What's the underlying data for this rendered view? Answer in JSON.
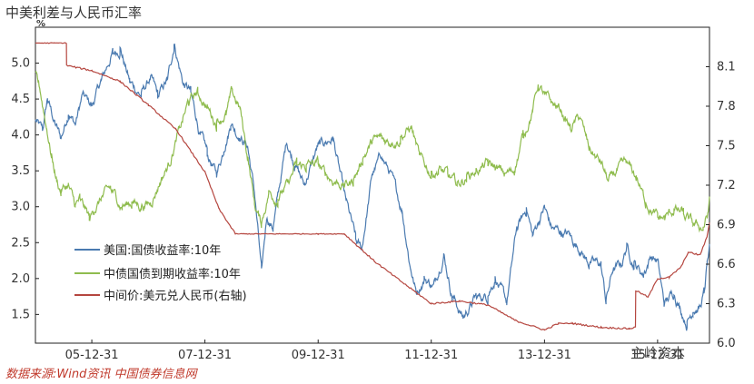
{
  "title": "中美利差与人民币汇率",
  "source": "数据来源:Wind资讯 中国债券信息网",
  "watermark": "主岭资本",
  "chart_data": {
    "type": "line",
    "title": "中美利差与人民币汇率",
    "left_axis": {
      "unit": "%",
      "ylim": [
        1.1,
        5.5
      ],
      "ticks": [
        1.5,
        2.0,
        2.5,
        3.0,
        3.5,
        4.0,
        4.5,
        5.0
      ]
    },
    "right_axis": {
      "ylim": [
        6.0,
        8.4
      ],
      "ticks": [
        6.0,
        6.3,
        6.6,
        6.9,
        7.2,
        7.5,
        7.8,
        8.1
      ]
    },
    "x_range": [
      "2005-01-01",
      "2016-11-30"
    ],
    "x_ticks": [
      "05-12-31",
      "07-12-31",
      "09-12-31",
      "11-12-31",
      "13-12-31",
      "15-12-31"
    ],
    "grid": false,
    "legend_position": "bottom-left",
    "series": [
      {
        "name": "美国:国债收益率:10年",
        "color": "#4a7ab0",
        "axis": "left",
        "points": [
          [
            "2005-01-01",
            4.2
          ],
          [
            "2005-02-15",
            4.05
          ],
          [
            "2005-03-20",
            4.5
          ],
          [
            "2005-05-01",
            4.2
          ],
          [
            "2005-06-15",
            3.95
          ],
          [
            "2005-08-01",
            4.3
          ],
          [
            "2005-09-15",
            4.15
          ],
          [
            "2005-11-01",
            4.55
          ],
          [
            "2006-01-01",
            4.4
          ],
          [
            "2006-03-01",
            4.75
          ],
          [
            "2006-05-15",
            5.15
          ],
          [
            "2006-07-01",
            5.2
          ],
          [
            "2006-09-01",
            4.75
          ],
          [
            "2006-11-15",
            4.55
          ],
          [
            "2007-01-15",
            4.8
          ],
          [
            "2007-03-01",
            4.55
          ],
          [
            "2007-05-01",
            4.75
          ],
          [
            "2007-06-15",
            5.25
          ],
          [
            "2007-08-15",
            4.7
          ],
          [
            "2007-10-01",
            4.6
          ],
          [
            "2007-12-01",
            4.0
          ],
          [
            "2008-01-15",
            3.75
          ],
          [
            "2008-03-15",
            3.45
          ],
          [
            "2008-05-01",
            3.8
          ],
          [
            "2008-06-15",
            4.15
          ],
          [
            "2008-08-01",
            4.0
          ],
          [
            "2008-10-01",
            3.85
          ],
          [
            "2008-11-15",
            3.2
          ],
          [
            "2008-12-30",
            2.1
          ],
          [
            "2009-02-01",
            2.85
          ],
          [
            "2009-03-15",
            2.7
          ],
          [
            "2009-06-10",
            3.9
          ],
          [
            "2009-08-01",
            3.6
          ],
          [
            "2009-10-01",
            3.3
          ],
          [
            "2009-12-31",
            3.85
          ],
          [
            "2010-04-05",
            3.95
          ],
          [
            "2010-06-15",
            3.2
          ],
          [
            "2010-08-30",
            2.55
          ],
          [
            "2010-10-08",
            2.4
          ],
          [
            "2010-12-15",
            3.45
          ],
          [
            "2011-02-10",
            3.7
          ],
          [
            "2011-04-15",
            3.45
          ],
          [
            "2011-06-25",
            2.95
          ],
          [
            "2011-08-20",
            2.15
          ],
          [
            "2011-09-25",
            1.8
          ],
          [
            "2011-11-15",
            2.0
          ],
          [
            "2012-01-15",
            1.9
          ],
          [
            "2012-03-20",
            2.35
          ],
          [
            "2012-05-15",
            1.75
          ],
          [
            "2012-07-24",
            1.45
          ],
          [
            "2012-10-15",
            1.75
          ],
          [
            "2012-12-31",
            1.75
          ],
          [
            "2013-02-15",
            2.0
          ],
          [
            "2013-05-01",
            1.65
          ],
          [
            "2013-07-05",
            2.7
          ],
          [
            "2013-09-05",
            2.95
          ],
          [
            "2013-10-15",
            2.6
          ],
          [
            "2013-12-31",
            3.0
          ],
          [
            "2014-02-15",
            2.7
          ],
          [
            "2014-04-15",
            2.65
          ],
          [
            "2014-06-15",
            2.6
          ],
          [
            "2014-08-15",
            2.4
          ],
          [
            "2014-10-15",
            2.2
          ],
          [
            "2014-12-31",
            2.2
          ],
          [
            "2015-02-01",
            1.68
          ],
          [
            "2015-03-15",
            2.1
          ],
          [
            "2015-05-15",
            2.2
          ],
          [
            "2015-06-15",
            2.45
          ],
          [
            "2015-08-01",
            2.2
          ],
          [
            "2015-10-01",
            2.05
          ],
          [
            "2015-11-15",
            2.3
          ],
          [
            "2015-12-31",
            2.25
          ],
          [
            "2016-02-11",
            1.65
          ],
          [
            "2016-04-15",
            1.8
          ],
          [
            "2016-07-08",
            1.37
          ],
          [
            "2016-08-15",
            1.55
          ],
          [
            "2016-09-30",
            1.6
          ],
          [
            "2016-10-25",
            1.8
          ],
          [
            "2016-11-15",
            2.2
          ],
          [
            "2016-11-30",
            2.4
          ]
        ]
      },
      {
        "name": "中债国债到期收益率:10年",
        "color": "#8fbc4e",
        "axis": "left",
        "points": [
          [
            "2005-01-01",
            4.85
          ],
          [
            "2005-02-01",
            4.6
          ],
          [
            "2005-03-15",
            4.1
          ],
          [
            "2005-04-15",
            3.7
          ],
          [
            "2005-05-15",
            3.4
          ],
          [
            "2005-06-15",
            3.2
          ],
          [
            "2005-08-01",
            3.3
          ],
          [
            "2005-09-15",
            3.0
          ],
          [
            "2005-10-15",
            3.1
          ],
          [
            "2005-12-15",
            2.85
          ],
          [
            "2006-01-15",
            2.95
          ],
          [
            "2006-03-01",
            3.1
          ],
          [
            "2006-05-01",
            3.25
          ],
          [
            "2006-07-15",
            3.0
          ],
          [
            "2006-09-15",
            3.05
          ],
          [
            "2006-11-15",
            3.0
          ],
          [
            "2007-01-15",
            3.05
          ],
          [
            "2007-03-15",
            3.35
          ],
          [
            "2007-05-15",
            3.6
          ],
          [
            "2007-07-15",
            4.05
          ],
          [
            "2007-09-15",
            4.45
          ],
          [
            "2007-11-15",
            4.6
          ],
          [
            "2008-01-15",
            4.4
          ],
          [
            "2008-03-15",
            4.15
          ],
          [
            "2008-05-15",
            4.3
          ],
          [
            "2008-06-25",
            4.6
          ],
          [
            "2008-08-15",
            4.35
          ],
          [
            "2008-10-01",
            3.7
          ],
          [
            "2008-11-15",
            3.05
          ],
          [
            "2008-12-30",
            2.75
          ],
          [
            "2009-02-15",
            3.2
          ],
          [
            "2009-04-15",
            3.1
          ],
          [
            "2009-06-15",
            3.3
          ],
          [
            "2009-08-15",
            3.6
          ],
          [
            "2009-10-15",
            3.55
          ],
          [
            "2009-12-31",
            3.6
          ],
          [
            "2010-02-15",
            3.45
          ],
          [
            "2010-04-15",
            3.35
          ],
          [
            "2010-06-15",
            3.3
          ],
          [
            "2010-08-15",
            3.35
          ],
          [
            "2010-10-15",
            3.65
          ],
          [
            "2010-12-15",
            3.9
          ],
          [
            "2011-02-15",
            3.95
          ],
          [
            "2011-04-15",
            3.9
          ],
          [
            "2011-06-15",
            3.95
          ],
          [
            "2011-08-25",
            4.1
          ],
          [
            "2011-10-15",
            3.7
          ],
          [
            "2011-12-31",
            3.45
          ],
          [
            "2012-02-15",
            3.5
          ],
          [
            "2012-04-15",
            3.45
          ],
          [
            "2012-06-15",
            3.3
          ],
          [
            "2012-08-15",
            3.4
          ],
          [
            "2012-10-15",
            3.5
          ],
          [
            "2012-12-31",
            3.6
          ],
          [
            "2013-02-15",
            3.55
          ],
          [
            "2013-04-15",
            3.45
          ],
          [
            "2013-06-20",
            3.5
          ],
          [
            "2013-08-15",
            4.0
          ],
          [
            "2013-10-15",
            4.35
          ],
          [
            "2013-11-20",
            4.7
          ],
          [
            "2013-12-31",
            4.55
          ],
          [
            "2014-02-15",
            4.45
          ],
          [
            "2014-04-15",
            4.35
          ],
          [
            "2014-06-15",
            4.1
          ],
          [
            "2014-08-15",
            4.25
          ],
          [
            "2014-10-15",
            3.8
          ],
          [
            "2014-12-31",
            3.6
          ],
          [
            "2015-02-15",
            3.35
          ],
          [
            "2015-04-15",
            3.5
          ],
          [
            "2015-06-15",
            3.6
          ],
          [
            "2015-08-15",
            3.4
          ],
          [
            "2015-10-15",
            3.05
          ],
          [
            "2015-12-31",
            2.85
          ],
          [
            "2016-02-15",
            2.85
          ],
          [
            "2016-04-15",
            2.95
          ],
          [
            "2016-06-15",
            2.9
          ],
          [
            "2016-08-15",
            2.75
          ],
          [
            "2016-10-20",
            2.7
          ],
          [
            "2016-11-15",
            2.85
          ],
          [
            "2016-11-30",
            3.1
          ]
        ]
      },
      {
        "name": "中间价:美元兑人民币(右轴)",
        "color": "#b5463f",
        "axis": "right",
        "points": [
          [
            "2005-01-01",
            8.28
          ],
          [
            "2005-07-20",
            8.28
          ],
          [
            "2005-07-21",
            8.11
          ],
          [
            "2005-12-31",
            8.07
          ],
          [
            "2006-06-30",
            7.99
          ],
          [
            "2006-12-31",
            7.81
          ],
          [
            "2007-06-30",
            7.62
          ],
          [
            "2007-12-31",
            7.3
          ],
          [
            "2008-03-31",
            7.02
          ],
          [
            "2008-07-15",
            6.83
          ],
          [
            "2008-12-31",
            6.83
          ],
          [
            "2009-12-31",
            6.83
          ],
          [
            "2010-06-18",
            6.83
          ],
          [
            "2010-12-31",
            6.62
          ],
          [
            "2011-06-30",
            6.46
          ],
          [
            "2011-12-31",
            6.3
          ],
          [
            "2012-06-30",
            6.32
          ],
          [
            "2012-12-31",
            6.29
          ],
          [
            "2013-06-30",
            6.17
          ],
          [
            "2013-12-31",
            6.1
          ],
          [
            "2014-03-31",
            6.15
          ],
          [
            "2014-06-30",
            6.15
          ],
          [
            "2014-12-31",
            6.12
          ],
          [
            "2015-06-30",
            6.11
          ],
          [
            "2015-08-10",
            6.12
          ],
          [
            "2015-08-12",
            6.4
          ],
          [
            "2015-10-31",
            6.35
          ],
          [
            "2015-12-31",
            6.49
          ],
          [
            "2016-03-15",
            6.5
          ],
          [
            "2016-05-31",
            6.58
          ],
          [
            "2016-07-15",
            6.69
          ],
          [
            "2016-09-30",
            6.67
          ],
          [
            "2016-11-15",
            6.81
          ],
          [
            "2016-11-30",
            6.92
          ]
        ]
      }
    ]
  }
}
